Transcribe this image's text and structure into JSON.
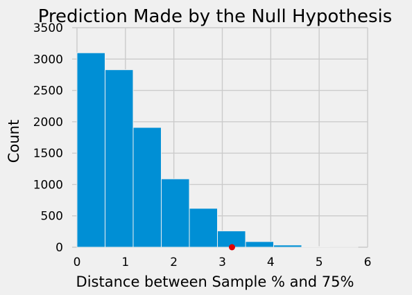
{
  "chart_data": {
    "type": "bar",
    "title": "Prediction Made by the Null Hypothesis",
    "xlabel": "Distance between Sample % and 75%",
    "ylabel": "Count",
    "xlim": [
      -0.1,
      6.0
    ],
    "ylim": [
      0,
      3500
    ],
    "xticks": [
      0,
      1,
      2,
      3,
      4,
      5,
      6
    ],
    "yticks": [
      0,
      500,
      1000,
      1500,
      2000,
      2500,
      3000,
      3500
    ],
    "grid": true,
    "bar_color": "#008fd5",
    "bins": [
      {
        "start": 0.0,
        "end": 0.58,
        "count": 3100
      },
      {
        "start": 0.58,
        "end": 1.16,
        "count": 2830
      },
      {
        "start": 1.16,
        "end": 1.74,
        "count": 1910
      },
      {
        "start": 1.74,
        "end": 2.32,
        "count": 1090
      },
      {
        "start": 2.32,
        "end": 2.9,
        "count": 620
      },
      {
        "start": 2.9,
        "end": 3.48,
        "count": 260
      },
      {
        "start": 3.48,
        "end": 4.06,
        "count": 90
      },
      {
        "start": 4.06,
        "end": 4.64,
        "count": 35
      },
      {
        "start": 4.64,
        "end": 5.22,
        "count": 10
      },
      {
        "start": 5.22,
        "end": 5.8,
        "count": 3
      }
    ],
    "observed_point": {
      "x": 3.2,
      "y": 0,
      "color": "#e00000"
    }
  }
}
